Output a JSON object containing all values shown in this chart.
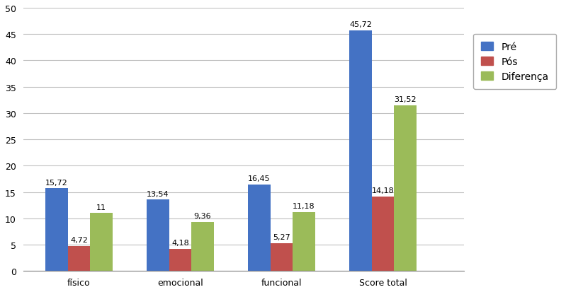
{
  "categories": [
    "físico",
    "emocional",
    "funcional",
    "Score total"
  ],
  "series": {
    "Pré": [
      15.72,
      13.54,
      16.45,
      45.72
    ],
    "Pós": [
      4.72,
      4.18,
      5.27,
      14.18
    ],
    "Diferença": [
      11,
      9.36,
      11.18,
      31.52
    ]
  },
  "labels": {
    "Pré": [
      "15,72",
      "13,54",
      "16,45",
      "45,72"
    ],
    "Pós": [
      "4,72",
      "4,18",
      "5,27",
      "14,18"
    ],
    "Diferença": [
      "11",
      "9,36",
      "11,18",
      "31,52"
    ]
  },
  "colors": {
    "Pré": "#4472C4",
    "Pós": "#C0504D",
    "Diferença": "#9BBB59"
  },
  "ylim": [
    0,
    50
  ],
  "yticks": [
    0,
    5,
    10,
    15,
    20,
    25,
    30,
    35,
    40,
    45,
    50
  ],
  "bar_width": 0.22,
  "label_fontsize": 8.0,
  "tick_fontsize": 9,
  "legend_fontsize": 10,
  "background_color": "#FFFFFF",
  "grid_color": "#C0C0C0",
  "border_color": "#808080"
}
